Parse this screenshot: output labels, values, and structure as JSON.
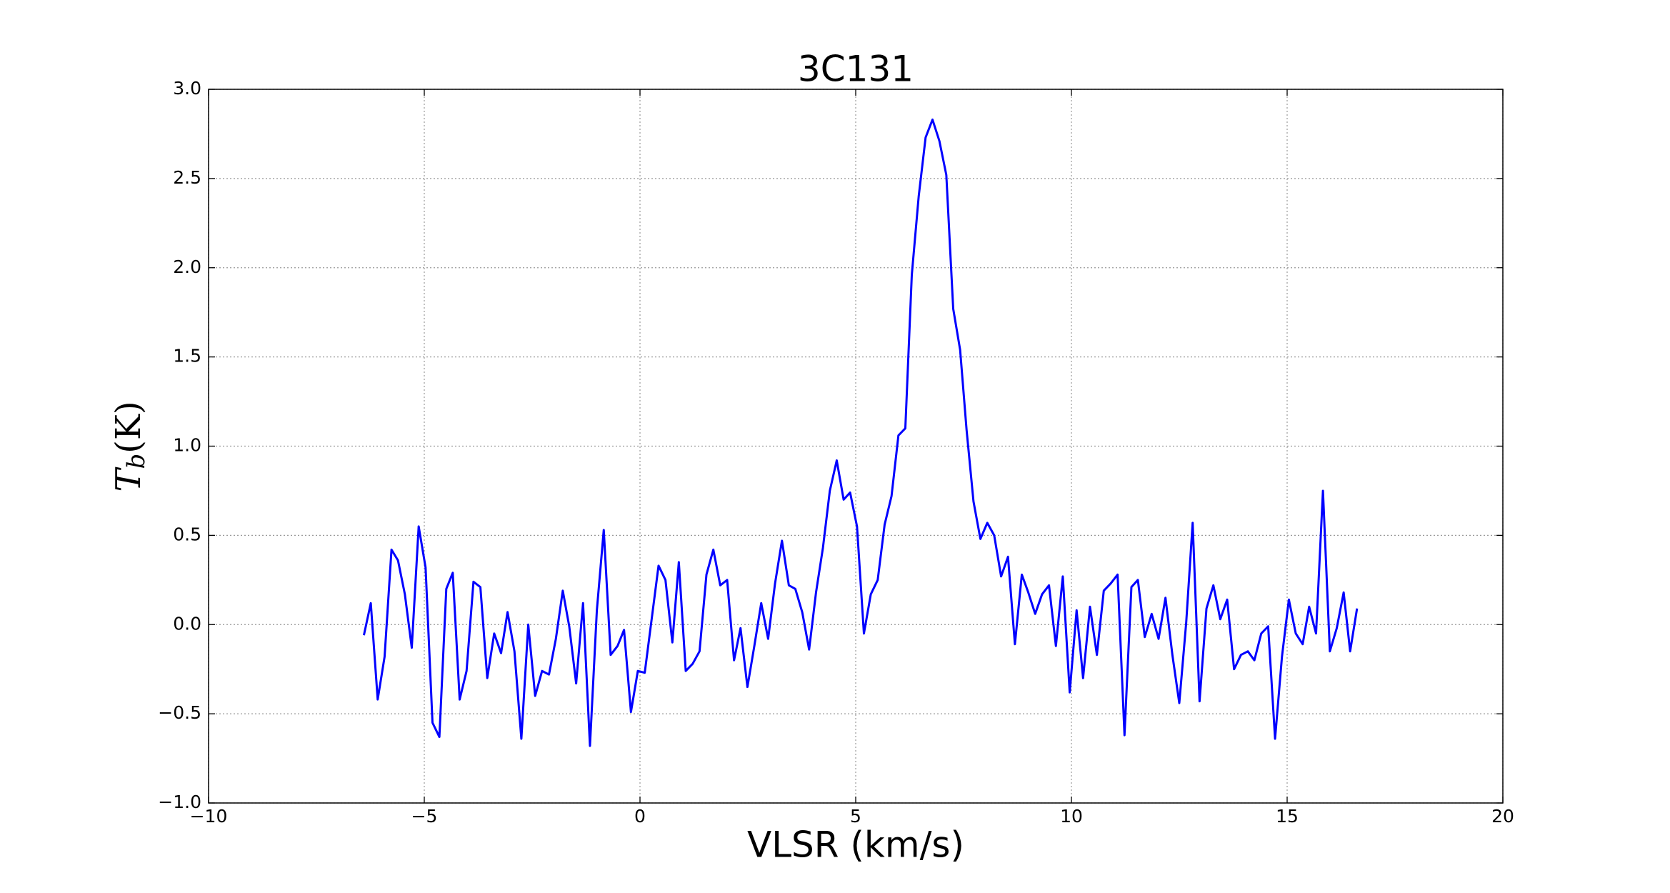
{
  "chart_data": {
    "type": "line",
    "title": "3C131",
    "x_label": "VLSR (km/s)",
    "y_label_parts": [
      "T",
      "b",
      "(K)"
    ],
    "x": [
      -6.4,
      -6.24,
      -6.08,
      -5.92,
      -5.76,
      -5.61,
      -5.45,
      -5.29,
      -5.13,
      -4.97,
      -4.81,
      -4.65,
      -4.49,
      -4.34,
      -4.18,
      -4.02,
      -3.86,
      -3.7,
      -3.54,
      -3.38,
      -3.22,
      -3.07,
      -2.91,
      -2.75,
      -2.59,
      -2.43,
      -2.27,
      -2.11,
      -1.95,
      -1.79,
      -1.64,
      -1.48,
      -1.32,
      -1.16,
      -1.0,
      -0.84,
      -0.68,
      -0.52,
      -0.37,
      -0.21,
      -0.05,
      0.11,
      0.27,
      0.43,
      0.59,
      0.75,
      0.9,
      1.06,
      1.22,
      1.38,
      1.54,
      1.7,
      1.86,
      2.02,
      2.18,
      2.33,
      2.49,
      2.65,
      2.81,
      2.97,
      3.13,
      3.29,
      3.45,
      3.6,
      3.76,
      3.92,
      4.08,
      4.24,
      4.4,
      4.56,
      4.72,
      4.87,
      5.03,
      5.19,
      5.35,
      5.51,
      5.67,
      5.83,
      5.99,
      6.15,
      6.3,
      6.46,
      6.62,
      6.78,
      6.94,
      7.1,
      7.26,
      7.42,
      7.57,
      7.73,
      7.89,
      8.05,
      8.21,
      8.37,
      8.53,
      8.69,
      8.85,
      9.0,
      9.16,
      9.32,
      9.48,
      9.64,
      9.8,
      9.96,
      10.12,
      10.27,
      10.43,
      10.59,
      10.75,
      10.91,
      11.07,
      11.23,
      11.39,
      11.54,
      11.7,
      11.86,
      12.02,
      12.18,
      12.34,
      12.5,
      12.66,
      12.81,
      12.97,
      13.13,
      13.29,
      13.45,
      13.61,
      13.77,
      13.93,
      14.09,
      14.24,
      14.4,
      14.56,
      14.72,
      14.88,
      15.04,
      15.2,
      15.36,
      15.51,
      15.67,
      15.83,
      15.99,
      16.15,
      16.31,
      16.46,
      16.62
    ],
    "series": [
      {
        "color": "#0000ff",
        "values": [
          -0.06,
          0.12,
          -0.42,
          -0.18,
          0.42,
          0.36,
          0.17,
          -0.13,
          0.55,
          0.32,
          -0.55,
          -0.63,
          0.2,
          0.29,
          -0.42,
          -0.26,
          0.24,
          0.21,
          -0.3,
          -0.05,
          -0.16,
          0.07,
          -0.15,
          -0.64,
          0.0,
          -0.4,
          -0.26,
          -0.28,
          -0.08,
          0.19,
          -0.01,
          -0.33,
          0.12,
          -0.68,
          0.08,
          0.53,
          -0.17,
          -0.12,
          -0.03,
          -0.49,
          -0.26,
          -0.27,
          0.03,
          0.33,
          0.25,
          -0.1,
          0.35,
          -0.26,
          -0.22,
          -0.15,
          0.28,
          0.42,
          0.22,
          0.25,
          -0.2,
          -0.02,
          -0.35,
          -0.12,
          0.12,
          -0.08,
          0.23,
          0.47,
          0.22,
          0.2,
          0.07,
          -0.14,
          0.18,
          0.43,
          0.75,
          0.92,
          0.7,
          0.74,
          0.55,
          -0.05,
          0.17,
          0.25,
          0.56,
          0.72,
          1.06,
          1.1,
          1.96,
          2.4,
          2.73,
          2.83,
          2.71,
          2.52,
          1.77,
          1.54,
          1.09,
          0.69,
          0.48,
          0.57,
          0.5,
          0.27,
          0.38,
          -0.11,
          0.28,
          0.18,
          0.06,
          0.17,
          0.22,
          -0.12,
          0.27,
          -0.38,
          0.08,
          -0.3,
          0.1,
          -0.17,
          0.19,
          0.23,
          0.28,
          -0.62,
          0.21,
          0.25,
          -0.07,
          0.06,
          -0.08,
          0.15,
          -0.17,
          -0.44,
          0.01,
          0.57,
          -0.43,
          0.09,
          0.22,
          0.03,
          0.14,
          -0.25,
          -0.17,
          -0.15,
          -0.2,
          -0.05,
          -0.01,
          -0.64,
          -0.18,
          0.14,
          -0.05,
          -0.11,
          0.1,
          -0.05,
          0.75,
          -0.15,
          -0.02,
          0.18,
          -0.15,
          0.09
        ]
      }
    ],
    "xlim": [
      -10,
      20
    ],
    "ylim": [
      -1.0,
      3.0
    ],
    "xticks": [
      {
        "value": -10,
        "label": "−10"
      },
      {
        "value": -5,
        "label": "−5"
      },
      0,
      5,
      10,
      15,
      20
    ],
    "yticks": [
      {
        "value": -1.0,
        "label": "−1.0"
      },
      {
        "value": -0.5,
        "label": "−0.5"
      },
      {
        "value": 0.0,
        "label": "0.0"
      },
      {
        "value": 0.5,
        "label": "0.5"
      },
      {
        "value": 1.0,
        "label": "1.0"
      },
      {
        "value": 1.5,
        "label": "1.5"
      },
      {
        "value": 2.0,
        "label": "2.0"
      },
      {
        "value": 2.5,
        "label": "2.5"
      },
      {
        "value": 3.0,
        "label": "3.0"
      }
    ],
    "grid": true
  }
}
